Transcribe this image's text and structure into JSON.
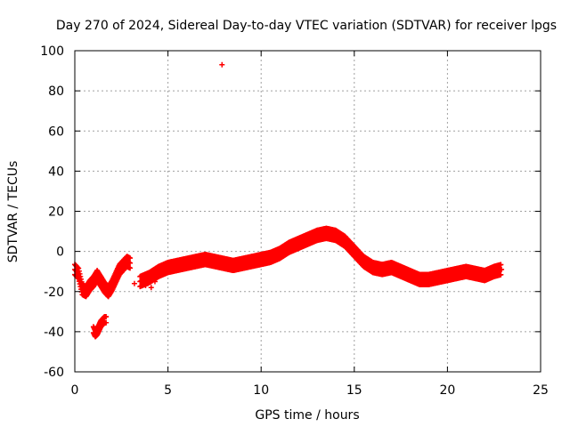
{
  "chart_data": {
    "type": "scatter",
    "title": "Day 270 of 2024, Sidereal Day-to-day VTEC variation (SDTVAR) for receiver lpgs",
    "xlabel": "GPS time / hours",
    "ylabel": "SDTVAR / TECUs",
    "xlim": [
      0,
      25
    ],
    "ylim": [
      -60,
      100
    ],
    "xticks": [
      0,
      5,
      10,
      15,
      20,
      25
    ],
    "yticks": [
      -60,
      -40,
      -20,
      0,
      20,
      40,
      60,
      80,
      100
    ],
    "grid": true,
    "legend": "none",
    "marker": "+",
    "color": "#ff0000",
    "series": [
      {
        "name": "SDTVAR",
        "trace": {
          "x": [
            0,
            0.2,
            0.4,
            0.6,
            0.8,
            1.0,
            1.2,
            1.4,
            1.6,
            1.8,
            2.0,
            2.2,
            2.4,
            2.6,
            2.8,
            3.0,
            3.2,
            3.5,
            4.0,
            4.5,
            5.0,
            5.5,
            6.0,
            6.5,
            7.0,
            7.5,
            8.0,
            8.5,
            9.0,
            9.5,
            10.0,
            10.5,
            11.0,
            11.5,
            12.0,
            12.5,
            13.0,
            13.5,
            14.0,
            14.5,
            15.0,
            15.5,
            16.0,
            16.5,
            17.0,
            17.5,
            18.0,
            18.5,
            19.0,
            19.5,
            20.0,
            20.5,
            21.0,
            21.5,
            22.0,
            22.5,
            22.9
          ],
          "y": [
            -9,
            -11,
            -19,
            -20,
            -17,
            -15,
            -12,
            -15,
            -18,
            -20,
            -17,
            -13,
            -9,
            -7,
            -5,
            -6,
            null,
            -15,
            -13,
            -10,
            -8,
            -7,
            -6,
            -5,
            -4,
            -5,
            -6,
            -7,
            -6,
            -5,
            -4,
            -3,
            -1,
            2,
            4,
            6,
            8,
            9,
            8,
            5,
            0,
            -5,
            -8,
            -9,
            -8,
            -10,
            -12,
            -14,
            -14,
            -13,
            -12,
            -11,
            -10,
            -11,
            -12,
            -10,
            -9
          ]
        },
        "band": 2.5,
        "cluster": {
          "x": [
            1.0,
            1.1,
            1.2,
            1.3,
            1.4,
            1.5,
            1.6,
            1.7
          ],
          "y": [
            -39,
            -41,
            -40,
            -38,
            -36,
            -35,
            -34,
            -34
          ]
        },
        "extra": [
          {
            "x": 0.05,
            "y": -7
          },
          {
            "x": 0.15,
            "y": -12
          },
          {
            "x": 0.5,
            "y": -20
          },
          {
            "x": 0.8,
            "y": -17
          },
          {
            "x": 0.9,
            "y": -16
          },
          {
            "x": 3.2,
            "y": -16
          },
          {
            "x": 3.8,
            "y": -17
          },
          {
            "x": 4.1,
            "y": -18
          },
          {
            "x": 4.3,
            "y": -15
          },
          {
            "x": 5.5,
            "y": -6
          }
        ],
        "outliers": [
          {
            "x": 7.9,
            "y": 93
          }
        ]
      }
    ]
  }
}
